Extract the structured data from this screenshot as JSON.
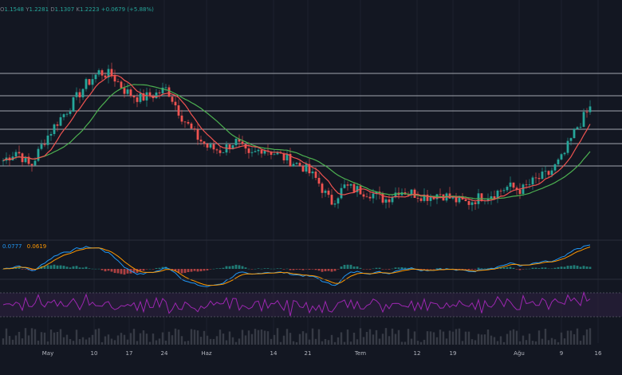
{
  "ohlc": {
    "open": "1.1548",
    "high": "1.2281",
    "low": "1.1307",
    "close": "1.2223",
    "change": "+0.0679 (+5.88%)"
  },
  "macd": {
    "macd_value": "0.0777",
    "signal_value": "0.0619"
  },
  "colors": {
    "background": "#131722",
    "up": "#26a69a",
    "down": "#ef5350",
    "ma_fast": "#ef5350",
    "ma_slow": "#4caf50",
    "macd_line": "#2196f3",
    "signal_line": "#ff9800",
    "rsi": "#9c27b0"
  },
  "chart_data": {
    "type": "candlestick",
    "x_labels": [
      "May",
      "10",
      "17",
      "24",
      "Haz",
      "14",
      "21",
      "Tem",
      "12",
      "19",
      "Ağu",
      "9",
      "16"
    ],
    "close_path": [
      0.96,
      0.99,
      0.94,
      1.02,
      1.08,
      1.13,
      1.19,
      1.23,
      1.22,
      1.17,
      1.15,
      1.16,
      1.18,
      1.1,
      1.04,
      1.0,
      0.99,
      1.02,
      0.97,
      1.0,
      0.98,
      0.96,
      0.94,
      0.9,
      0.83,
      0.88,
      0.87,
      0.86,
      0.84,
      0.87,
      0.86,
      0.85,
      0.86,
      0.84,
      0.83,
      0.85,
      0.86,
      0.88,
      0.87,
      0.9,
      0.92,
      0.97,
      1.06,
      1.12
    ]
  }
}
